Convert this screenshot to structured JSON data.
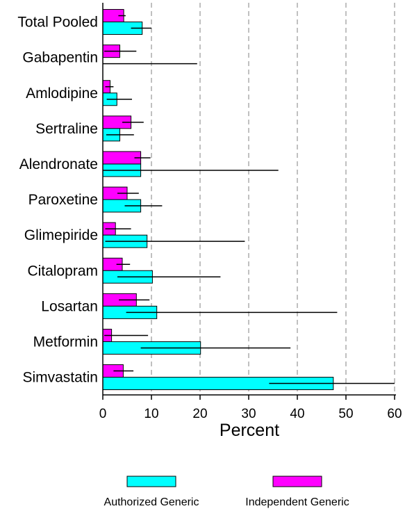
{
  "chart_data": {
    "type": "bar",
    "orientation": "horizontal",
    "categories": [
      "Total Pooled",
      "Gabapentin",
      "Amlodipine",
      "Sertraline",
      "Alendronate",
      "Paroxetine",
      "Glimepiride",
      "Citalopram",
      "Losartan",
      "Metformin",
      "Simvastatin"
    ],
    "series": [
      {
        "name": "Independent Generic",
        "color": "#ff00ff",
        "values": [
          4.3,
          3.5,
          1.5,
          5.8,
          7.8,
          5.0,
          2.6,
          4.0,
          6.9,
          1.8,
          4.2
        ],
        "error": [
          [
            3.2,
            4.7
          ],
          [
            0.3,
            6.9
          ],
          [
            0.5,
            2.2
          ],
          [
            4.0,
            8.4
          ],
          [
            6.5,
            9.8
          ],
          [
            3.0,
            7.4
          ],
          [
            0.5,
            5.8
          ],
          [
            2.8,
            5.6
          ],
          [
            3.3,
            9.6
          ],
          [
            0.3,
            9.3
          ],
          [
            2.2,
            6.3
          ]
        ]
      },
      {
        "name": "Authorized Generic",
        "color": "#00ffff",
        "values": [
          8.1,
          0,
          2.9,
          3.5,
          7.8,
          7.8,
          9.1,
          10.2,
          11.1,
          20.1,
          47.4
        ],
        "error": [
          [
            5.8,
            10.0
          ],
          [
            0,
            19.4
          ],
          [
            0.8,
            6.0
          ],
          [
            0.7,
            6.4
          ],
          [
            0,
            36.1
          ],
          [
            4.5,
            12.2
          ],
          [
            0.5,
            29.2
          ],
          [
            3.0,
            24.2
          ],
          [
            4.8,
            48.2
          ],
          [
            7.8,
            38.6
          ],
          [
            34.2,
            60.0
          ]
        ]
      }
    ],
    "xlabel": "Percent",
    "xlim": [
      0,
      60
    ],
    "xticks": [
      "0",
      "10",
      "20",
      "30",
      "40",
      "50",
      "60"
    ],
    "grid": "vertical dashed",
    "legend_position": "bottom"
  }
}
